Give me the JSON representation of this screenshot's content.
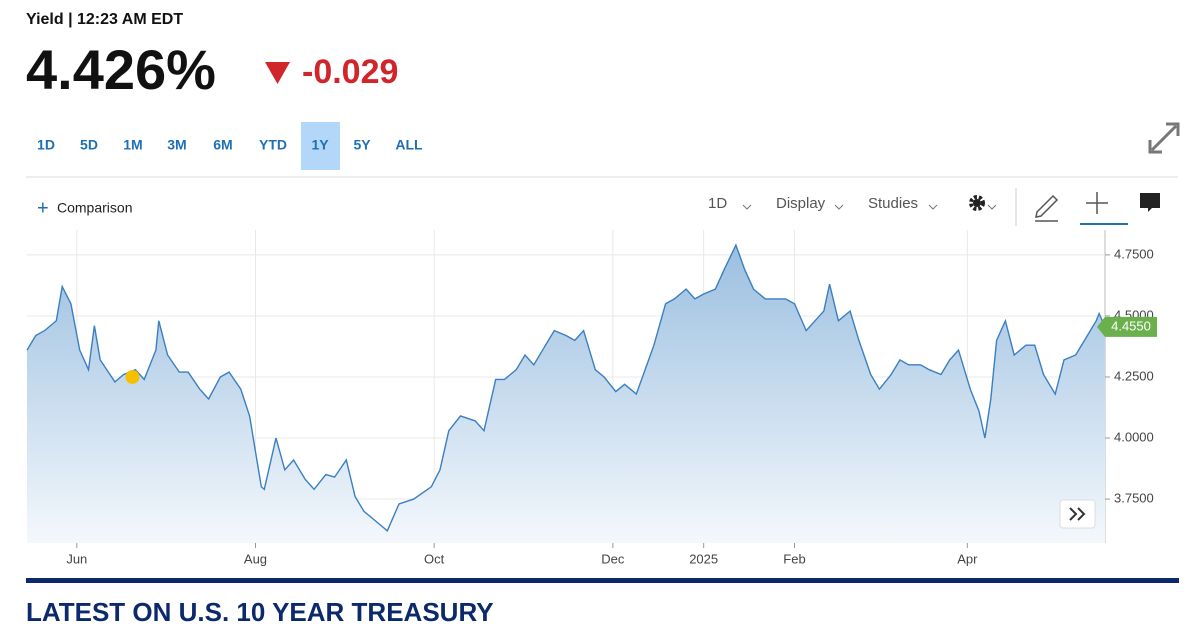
{
  "header": {
    "label": "Yield | 12:23 AM EDT",
    "last": "4.426%",
    "change": "-0.029"
  },
  "ranges": {
    "buttons": [
      "1D",
      "5D",
      "1M",
      "3M",
      "6M",
      "YTD",
      "1Y",
      "5Y",
      "ALL"
    ],
    "active": "1Y"
  },
  "toolbar": {
    "comparison": "Comparison",
    "interval": "1D",
    "display": "Display",
    "studies": "Studies"
  },
  "chart_data": {
    "type": "line",
    "x": [
      0,
      3,
      6,
      10,
      12,
      15,
      18,
      21,
      23,
      25,
      30,
      33,
      37,
      40,
      44,
      45,
      48,
      52,
      55,
      59,
      62,
      66,
      69,
      73,
      76,
      80,
      81,
      85,
      88,
      91,
      95,
      98,
      102,
      105,
      109,
      112,
      115,
      119,
      123,
      127,
      132,
      138,
      141,
      144,
      148,
      153,
      156,
      160,
      163,
      167,
      170,
      173,
      177,
      180,
      184,
      187,
      190,
      194,
      197,
      201,
      204,
      208,
      211,
      214,
      218,
      221,
      225,
      228,
      231,
      235,
      238,
      242,
      245,
      248,
      252,
      255,
      259,
      262,
      266,
      269,
      272,
      274,
      277,
      281,
      284,
      288,
      291,
      295,
      298,
      301,
      305,
      308,
      312,
      315,
      318,
      322,
      325,
      327,
      329,
      331,
      334,
      337,
      341,
      344,
      347,
      351,
      354,
      358,
      361,
      365,
      366,
      368
    ],
    "series": [
      {
        "color": "#3a7fc0",
        "values": [
          4.36,
          4.42,
          4.44,
          4.48,
          4.62,
          4.55,
          4.36,
          4.28,
          4.46,
          4.32,
          4.23,
          4.26,
          4.28,
          4.24,
          4.36,
          4.48,
          4.34,
          4.27,
          4.27,
          4.2,
          4.16,
          4.25,
          4.27,
          4.2,
          4.09,
          3.8,
          3.79,
          4.0,
          3.87,
          3.91,
          3.83,
          3.79,
          3.85,
          3.84,
          3.91,
          3.76,
          3.7,
          3.66,
          3.62,
          3.73,
          3.75,
          3.8,
          3.87,
          4.03,
          4.09,
          4.07,
          4.03,
          4.24,
          4.24,
          4.28,
          4.34,
          4.3,
          4.38,
          4.44,
          4.42,
          4.4,
          4.44,
          4.28,
          4.25,
          4.19,
          4.22,
          4.18,
          4.28,
          4.38,
          4.55,
          4.57,
          4.61,
          4.57,
          4.59,
          4.61,
          4.69,
          4.79,
          4.69,
          4.61,
          4.57,
          4.57,
          4.57,
          4.55,
          4.44,
          4.48,
          4.52,
          4.63,
          4.48,
          4.52,
          4.4,
          4.26,
          4.2,
          4.26,
          4.32,
          4.3,
          4.3,
          4.28,
          4.26,
          4.32,
          4.36,
          4.2,
          4.11,
          4.0,
          4.16,
          4.4,
          4.48,
          4.34,
          4.38,
          4.38,
          4.26,
          4.18,
          4.32,
          4.34,
          4.4,
          4.48,
          4.51,
          4.455
        ],
        "value_labels": [
          null,
          null,
          null,
          null,
          null,
          null,
          null,
          null,
          null,
          null,
          null,
          null,
          null,
          null,
          null,
          null,
          null,
          null,
          null,
          null,
          null,
          null,
          null,
          null,
          null,
          null,
          null,
          null,
          null,
          null,
          null,
          null,
          null,
          null,
          null,
          null,
          null,
          null,
          null,
          null,
          null,
          null,
          null,
          null,
          null,
          null,
          null,
          null,
          null,
          null,
          null,
          null,
          null,
          null,
          null,
          null,
          null,
          null,
          null,
          null,
          null,
          null,
          null,
          null,
          null,
          null,
          null,
          null,
          null,
          null,
          null,
          null,
          null,
          null,
          null,
          null,
          null,
          null,
          null,
          null,
          null,
          null,
          null,
          null,
          null,
          null,
          null,
          null,
          null,
          null,
          null,
          null,
          null,
          null,
          null,
          null,
          null,
          null,
          null,
          null,
          null,
          null,
          null,
          null,
          null,
          null,
          null,
          null,
          null,
          null,
          null,
          "4.4550"
        ]
      }
    ],
    "label_color": "#6ab04c",
    "highlight": {
      "x": 36,
      "y": 4.25,
      "color": "#f5c000"
    },
    "xlim": [
      0,
      368
    ],
    "xticks": [
      {
        "value": 17,
        "label": "Jun"
      },
      {
        "value": 78,
        "label": "Aug"
      },
      {
        "value": 139,
        "label": "Oct"
      },
      {
        "value": 200,
        "label": "Dec"
      },
      {
        "value": 231,
        "label": "2025"
      },
      {
        "value": 262,
        "label": "Feb"
      },
      {
        "value": 321,
        "label": "Apr"
      }
    ],
    "ylim": [
      3.57,
      4.852
    ],
    "yticks": [
      {
        "value": 3.75,
        "label": "3.7500"
      },
      {
        "value": 4.0,
        "label": "4.0000"
      },
      {
        "value": 4.25,
        "label": "4.2500"
      },
      {
        "value": 4.5,
        "label": "4.5000"
      },
      {
        "value": 4.75,
        "label": "4.7500"
      }
    ],
    "grid": true
  },
  "news": {
    "heading": "LATEST ON U.S. 10 YEAR TREASURY"
  }
}
